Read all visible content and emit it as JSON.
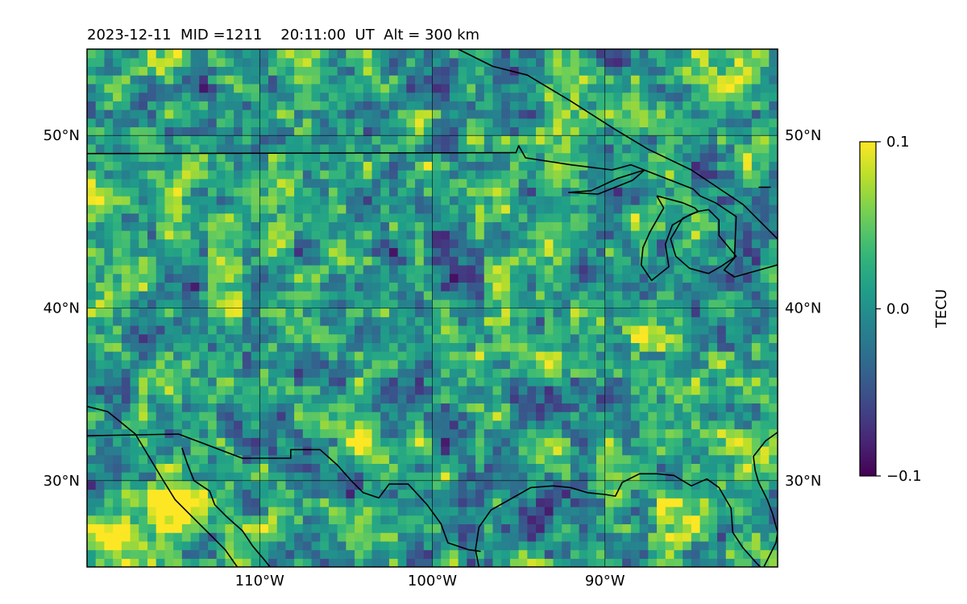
{
  "chart_data": {
    "type": "heatmap",
    "title": "2023-12-11  MID =1211    20:11:00  UT  Alt = 300 km",
    "xlim": [
      -120,
      -80
    ],
    "ylim": [
      25,
      55
    ],
    "x_ticks": [
      {
        "value": -110,
        "label": "110°W"
      },
      {
        "value": -100,
        "label": "100°W"
      },
      {
        "value": -90,
        "label": "90°W"
      }
    ],
    "y_ticks": [
      {
        "value": 30,
        "label": "30°N"
      },
      {
        "value": 40,
        "label": "40°N"
      },
      {
        "value": 50,
        "label": "50°N"
      }
    ],
    "gridlines": true,
    "grid_resolution_deg": 0.5,
    "colormap": "viridis",
    "colorbar": {
      "label": "TECU",
      "vmin": -0.1,
      "vmax": 0.1,
      "ticks": [
        {
          "value": 0.1,
          "label": "0.1"
        },
        {
          "value": 0.0,
          "label": "0.0"
        },
        {
          "value": -0.1,
          "label": "−0.1"
        }
      ]
    },
    "features": [
      {
        "name": "positive blob",
        "lon": -114.5,
        "lat": 28.1,
        "radius_deg": 1.7,
        "value": 0.13
      },
      {
        "name": "positive blob",
        "lon": -118.2,
        "lat": 26.8,
        "radius_deg": 1.4,
        "value": 0.08
      },
      {
        "name": "positive blob",
        "lon": -104.3,
        "lat": 32.1,
        "radius_deg": 0.9,
        "value": 0.09
      },
      {
        "name": "positive blob",
        "lon": -102.8,
        "lat": 30.8,
        "radius_deg": 1.0,
        "value": 0.07
      },
      {
        "name": "positive blob",
        "lon": -105.0,
        "lat": 26.9,
        "radius_deg": 1.0,
        "value": 0.06
      },
      {
        "name": "positive blob",
        "lon": -87.5,
        "lat": 35.6,
        "radius_deg": 1.8,
        "value": 0.06
      },
      {
        "name": "positive blob",
        "lon": -82.5,
        "lat": 32.4,
        "radius_deg": 1.3,
        "value": 0.06
      },
      {
        "name": "positive blob",
        "lon": -82.8,
        "lat": 52.8,
        "radius_deg": 1.2,
        "value": 0.05
      },
      {
        "name": "negative blob",
        "lon": -94.0,
        "lat": 27.2,
        "radius_deg": 1.4,
        "value": -0.11
      },
      {
        "name": "negative blob",
        "lon": -104.8,
        "lat": 29.4,
        "radius_deg": 0.8,
        "value": -0.09
      },
      {
        "name": "negative blob",
        "lon": -89.0,
        "lat": 34.0,
        "radius_deg": 1.7,
        "value": -0.06
      },
      {
        "name": "negative blob",
        "lon": -112.5,
        "lat": 27.0,
        "radius_deg": 1.0,
        "value": -0.05
      },
      {
        "name": "negative blob",
        "lon": -98.0,
        "lat": 43.5,
        "radius_deg": 2.0,
        "value": -0.04
      },
      {
        "name": "negative blob",
        "lon": -91.0,
        "lat": 44.0,
        "radius_deg": 1.5,
        "value": -0.05
      },
      {
        "name": "negative blob",
        "lon": -103.0,
        "lat": 41.5,
        "radius_deg": 1.5,
        "value": -0.04
      }
    ],
    "coastlines": [
      [
        [
          -120,
          34.3
        ],
        [
          -118.8,
          34.0
        ],
        [
          -117.2,
          32.7
        ],
        [
          -116.6,
          31.7
        ],
        [
          -115.7,
          30.2
        ],
        [
          -114.9,
          28.9
        ],
        [
          -114.0,
          28.0
        ],
        [
          -113.0,
          27.0
        ],
        [
          -112.0,
          26.0
        ],
        [
          -111.3,
          25.0
        ]
      ],
      [
        [
          -114.5,
          31.9
        ],
        [
          -114.2,
          31.0
        ],
        [
          -113.8,
          30.0
        ],
        [
          -112.9,
          29.4
        ],
        [
          -112.6,
          28.6
        ],
        [
          -111.9,
          27.9
        ],
        [
          -111.0,
          27.1
        ],
        [
          -110.4,
          26.2
        ],
        [
          -109.8,
          25.5
        ],
        [
          -109.4,
          25.0
        ]
      ],
      [
        [
          -97.3,
          25.0
        ],
        [
          -97.5,
          26.0
        ],
        [
          -97.3,
          27.3
        ],
        [
          -96.6,
          28.3
        ],
        [
          -95.0,
          29.2
        ],
        [
          -94.3,
          29.6
        ],
        [
          -93.0,
          29.7
        ],
        [
          -92.0,
          29.6
        ],
        [
          -91.0,
          29.3
        ],
        [
          -90.0,
          29.2
        ],
        [
          -89.4,
          29.1
        ],
        [
          -89.0,
          29.9
        ],
        [
          -88.0,
          30.4
        ],
        [
          -87.0,
          30.4
        ],
        [
          -86.0,
          30.3
        ],
        [
          -85.0,
          29.7
        ],
        [
          -84.1,
          30.1
        ],
        [
          -83.4,
          29.6
        ],
        [
          -82.7,
          28.4
        ],
        [
          -82.6,
          27.0
        ],
        [
          -82.0,
          26.1
        ],
        [
          -81.2,
          25.2
        ],
        [
          -81.0,
          25.0
        ]
      ],
      [
        [
          -80.8,
          25.0
        ],
        [
          -80.1,
          26.4
        ],
        [
          -80.0,
          27.0
        ],
        [
          -80.3,
          28.1
        ],
        [
          -80.6,
          28.9
        ],
        [
          -81.1,
          29.9
        ],
        [
          -81.3,
          30.6
        ],
        [
          -81.4,
          31.4
        ],
        [
          -80.7,
          32.3
        ],
        [
          -80.0,
          32.8
        ]
      ],
      [
        [
          -81.1,
          47.0
        ],
        [
          -80.4,
          47.0
        ]
      ]
    ],
    "borders": [
      [
        [
          -120,
          48.95
        ],
        [
          -95.15,
          49.0
        ],
        [
          -95.0,
          49.4
        ],
        [
          -94.6,
          48.7
        ],
        [
          -92.0,
          48.3
        ],
        [
          -89.6,
          48.0
        ],
        [
          -88.5,
          48.3
        ],
        [
          -84.9,
          46.9
        ],
        [
          -84.5,
          46.5
        ],
        [
          -83.6,
          46.1
        ],
        [
          -82.4,
          45.3
        ],
        [
          -82.5,
          42.9
        ],
        [
          -83.1,
          42.2
        ],
        [
          -82.5,
          41.8
        ],
        [
          -80.0,
          42.5
        ]
      ],
      [
        [
          -120,
          32.6
        ],
        [
          -114.7,
          32.7
        ],
        [
          -111.0,
          31.3
        ],
        [
          -108.2,
          31.3
        ],
        [
          -108.2,
          31.8
        ],
        [
          -106.5,
          31.8
        ],
        [
          -105.5,
          30.9
        ],
        [
          -104.7,
          30.0
        ],
        [
          -104.0,
          29.3
        ],
        [
          -103.1,
          29.0
        ],
        [
          -102.5,
          29.8
        ],
        [
          -101.4,
          29.8
        ],
        [
          -100.3,
          28.6
        ],
        [
          -99.5,
          27.5
        ],
        [
          -99.1,
          26.4
        ],
        [
          -97.9,
          26.0
        ],
        [
          -97.2,
          25.9
        ]
      ],
      [
        [
          -87.7,
          48.0
        ],
        [
          -89.3,
          47.5
        ],
        [
          -90.8,
          46.8
        ],
        [
          -92.1,
          46.7
        ],
        [
          -90.4,
          46.6
        ],
        [
          -88.4,
          47.4
        ],
        [
          -87.7,
          48.0
        ]
      ],
      [
        [
          -87.0,
          46.5
        ],
        [
          -85.5,
          46.1
        ],
        [
          -84.8,
          45.8
        ],
        [
          -84.6,
          45.6
        ],
        [
          -85.1,
          45.4
        ],
        [
          -86.1,
          44.8
        ],
        [
          -86.5,
          43.7
        ],
        [
          -86.3,
          42.4
        ],
        [
          -87.3,
          41.6
        ],
        [
          -87.9,
          42.5
        ],
        [
          -87.8,
          43.5
        ],
        [
          -87.4,
          44.4
        ],
        [
          -86.6,
          45.8
        ],
        [
          -87.0,
          46.5
        ]
      ],
      [
        [
          -84.6,
          45.6
        ],
        [
          -84.0,
          45.7
        ],
        [
          -83.4,
          45.1
        ],
        [
          -83.4,
          44.2
        ],
        [
          -82.4,
          43.0
        ],
        [
          -83.3,
          42.4
        ],
        [
          -84.0,
          42.0
        ],
        [
          -85.1,
          42.3
        ],
        [
          -85.9,
          43.0
        ],
        [
          -86.2,
          44.0
        ],
        [
          -85.5,
          45.2
        ],
        [
          -84.6,
          45.6
        ]
      ],
      [
        [
          -98.5,
          55
        ],
        [
          -96.5,
          54.0
        ],
        [
          -94.5,
          53.5
        ],
        [
          -92.0,
          52.0
        ],
        [
          -89.5,
          50.4
        ],
        [
          -87.5,
          49.2
        ],
        [
          -85.0,
          48.0
        ],
        [
          -82.0,
          46.0
        ],
        [
          -80.0,
          44.0
        ]
      ]
    ]
  }
}
